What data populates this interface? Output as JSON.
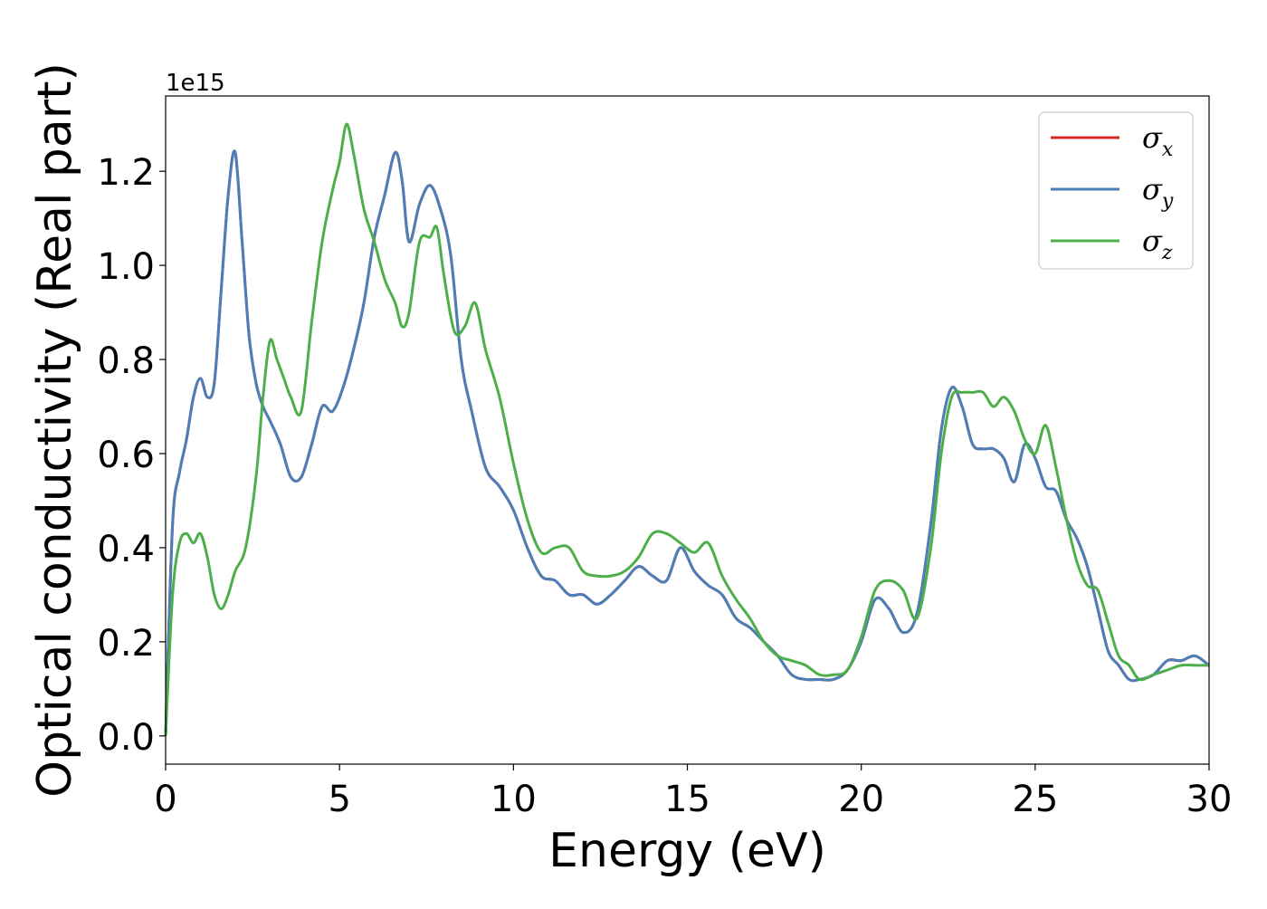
{
  "chart_data": {
    "type": "line",
    "xlabel": "Energy (eV)",
    "ylabel": "Optical conductivity (Real part)",
    "offset_text": "1e15",
    "xlim": [
      0,
      30
    ],
    "ylim": [
      -0.06,
      1.36
    ],
    "xticks": [
      0,
      5,
      10,
      15,
      20,
      25,
      30
    ],
    "xtick_labels": [
      "0",
      "5",
      "10",
      "15",
      "20",
      "25",
      "30"
    ],
    "yticks": [
      0.0,
      0.2,
      0.4,
      0.6,
      0.8,
      1.0,
      1.2
    ],
    "ytick_labels": [
      "0.0",
      "0.2",
      "0.4",
      "0.6",
      "0.8",
      "1.0",
      "1.2"
    ],
    "grid": false,
    "legend_position": "top-right",
    "series": [
      {
        "name": "σx",
        "symbol": "σ",
        "subscript": "x",
        "color": "#d62728",
        "x": [
          0,
          0.2,
          0.4,
          0.6,
          0.8,
          1.0,
          1.2,
          1.4,
          1.6,
          1.8,
          2.0,
          2.2,
          2.4,
          2.6,
          2.8,
          3.0,
          3.3,
          3.6,
          3.9,
          4.2,
          4.5,
          4.8,
          5.1,
          5.4,
          5.7,
          6.0,
          6.3,
          6.6,
          6.8,
          7.0,
          7.3,
          7.6,
          7.9,
          8.2,
          8.5,
          8.8,
          9.2,
          9.6,
          10.0,
          10.4,
          10.8,
          11.2,
          11.6,
          12.0,
          12.4,
          12.8,
          13.2,
          13.6,
          14.0,
          14.4,
          14.8,
          15.2,
          15.6,
          16.0,
          16.4,
          16.8,
          17.2,
          17.6,
          18.0,
          18.4,
          18.8,
          19.2,
          19.6,
          20.0,
          20.4,
          20.8,
          21.2,
          21.6,
          22.0,
          22.3,
          22.6,
          22.9,
          23.2,
          23.5,
          23.8,
          24.1,
          24.4,
          24.7,
          25.0,
          25.3,
          25.6,
          25.9,
          26.2,
          26.5,
          26.8,
          27.1,
          27.4,
          27.7,
          28.0,
          28.4,
          28.8,
          29.2,
          29.6,
          30.0
        ],
        "y": [
          0.0,
          0.45,
          0.56,
          0.63,
          0.72,
          0.76,
          0.72,
          0.75,
          0.95,
          1.15,
          1.24,
          1.05,
          0.85,
          0.75,
          0.7,
          0.67,
          0.62,
          0.55,
          0.55,
          0.62,
          0.7,
          0.69,
          0.74,
          0.82,
          0.92,
          1.06,
          1.15,
          1.24,
          1.18,
          1.05,
          1.13,
          1.17,
          1.12,
          1.02,
          0.8,
          0.69,
          0.57,
          0.53,
          0.48,
          0.4,
          0.34,
          0.33,
          0.3,
          0.3,
          0.28,
          0.3,
          0.33,
          0.36,
          0.34,
          0.33,
          0.4,
          0.35,
          0.32,
          0.3,
          0.25,
          0.23,
          0.2,
          0.17,
          0.13,
          0.12,
          0.12,
          0.12,
          0.14,
          0.2,
          0.29,
          0.27,
          0.22,
          0.26,
          0.45,
          0.65,
          0.74,
          0.7,
          0.62,
          0.61,
          0.61,
          0.59,
          0.54,
          0.62,
          0.59,
          0.53,
          0.52,
          0.46,
          0.42,
          0.36,
          0.27,
          0.18,
          0.15,
          0.12,
          0.12,
          0.13,
          0.16,
          0.16,
          0.17,
          0.15
        ]
      },
      {
        "name": "σy",
        "symbol": "σ",
        "subscript": "y",
        "color": "#4c7fb8",
        "x": [
          0,
          0.2,
          0.4,
          0.6,
          0.8,
          1.0,
          1.2,
          1.4,
          1.6,
          1.8,
          2.0,
          2.2,
          2.4,
          2.6,
          2.8,
          3.0,
          3.3,
          3.6,
          3.9,
          4.2,
          4.5,
          4.8,
          5.1,
          5.4,
          5.7,
          6.0,
          6.3,
          6.6,
          6.8,
          7.0,
          7.3,
          7.6,
          7.9,
          8.2,
          8.5,
          8.8,
          9.2,
          9.6,
          10.0,
          10.4,
          10.8,
          11.2,
          11.6,
          12.0,
          12.4,
          12.8,
          13.2,
          13.6,
          14.0,
          14.4,
          14.8,
          15.2,
          15.6,
          16.0,
          16.4,
          16.8,
          17.2,
          17.6,
          18.0,
          18.4,
          18.8,
          19.2,
          19.6,
          20.0,
          20.4,
          20.8,
          21.2,
          21.6,
          22.0,
          22.3,
          22.6,
          22.9,
          23.2,
          23.5,
          23.8,
          24.1,
          24.4,
          24.7,
          25.0,
          25.3,
          25.6,
          25.9,
          26.2,
          26.5,
          26.8,
          27.1,
          27.4,
          27.7,
          28.0,
          28.4,
          28.8,
          29.2,
          29.6,
          30.0
        ],
        "y": [
          0.0,
          0.45,
          0.56,
          0.63,
          0.72,
          0.76,
          0.72,
          0.75,
          0.95,
          1.15,
          1.24,
          1.05,
          0.85,
          0.75,
          0.7,
          0.67,
          0.62,
          0.55,
          0.55,
          0.62,
          0.7,
          0.69,
          0.74,
          0.82,
          0.92,
          1.06,
          1.15,
          1.24,
          1.18,
          1.05,
          1.13,
          1.17,
          1.12,
          1.02,
          0.8,
          0.69,
          0.57,
          0.53,
          0.48,
          0.4,
          0.34,
          0.33,
          0.3,
          0.3,
          0.28,
          0.3,
          0.33,
          0.36,
          0.34,
          0.33,
          0.4,
          0.35,
          0.32,
          0.3,
          0.25,
          0.23,
          0.2,
          0.17,
          0.13,
          0.12,
          0.12,
          0.12,
          0.14,
          0.2,
          0.29,
          0.27,
          0.22,
          0.26,
          0.45,
          0.65,
          0.74,
          0.7,
          0.62,
          0.61,
          0.61,
          0.59,
          0.54,
          0.62,
          0.59,
          0.53,
          0.52,
          0.46,
          0.42,
          0.36,
          0.27,
          0.18,
          0.15,
          0.12,
          0.12,
          0.13,
          0.16,
          0.16,
          0.17,
          0.15
        ]
      },
      {
        "name": "σz",
        "symbol": "σ",
        "subscript": "z",
        "color": "#4daf4a",
        "x": [
          0,
          0.2,
          0.4,
          0.6,
          0.8,
          1.0,
          1.2,
          1.4,
          1.6,
          1.8,
          2.0,
          2.3,
          2.6,
          2.8,
          3.0,
          3.2,
          3.4,
          3.6,
          3.9,
          4.2,
          4.5,
          4.8,
          5.0,
          5.2,
          5.4,
          5.7,
          6.0,
          6.3,
          6.6,
          6.8,
          7.0,
          7.3,
          7.6,
          7.8,
          8.0,
          8.3,
          8.6,
          8.9,
          9.2,
          9.6,
          10.0,
          10.4,
          10.8,
          11.2,
          11.6,
          12.0,
          12.4,
          12.8,
          13.2,
          13.6,
          14.0,
          14.4,
          14.8,
          15.2,
          15.6,
          16.0,
          16.4,
          16.8,
          17.2,
          17.6,
          18.0,
          18.4,
          18.8,
          19.2,
          19.6,
          20.0,
          20.4,
          20.8,
          21.2,
          21.6,
          22.0,
          22.3,
          22.6,
          22.9,
          23.2,
          23.5,
          23.8,
          24.1,
          24.4,
          24.7,
          25.0,
          25.3,
          25.6,
          25.9,
          26.2,
          26.5,
          26.8,
          27.1,
          27.4,
          27.7,
          28.0,
          28.4,
          28.8,
          29.2,
          29.6,
          30.0
        ],
        "y": [
          0.0,
          0.3,
          0.41,
          0.43,
          0.41,
          0.43,
          0.38,
          0.3,
          0.27,
          0.3,
          0.35,
          0.4,
          0.55,
          0.72,
          0.84,
          0.8,
          0.76,
          0.72,
          0.69,
          0.88,
          1.05,
          1.16,
          1.22,
          1.3,
          1.24,
          1.12,
          1.05,
          0.97,
          0.92,
          0.87,
          0.9,
          1.05,
          1.06,
          1.08,
          0.98,
          0.86,
          0.87,
          0.92,
          0.82,
          0.72,
          0.58,
          0.46,
          0.39,
          0.4,
          0.4,
          0.35,
          0.34,
          0.34,
          0.35,
          0.38,
          0.43,
          0.43,
          0.41,
          0.39,
          0.41,
          0.34,
          0.29,
          0.25,
          0.2,
          0.17,
          0.16,
          0.15,
          0.13,
          0.13,
          0.14,
          0.21,
          0.31,
          0.33,
          0.31,
          0.25,
          0.4,
          0.6,
          0.72,
          0.73,
          0.73,
          0.73,
          0.7,
          0.72,
          0.69,
          0.63,
          0.6,
          0.66,
          0.57,
          0.46,
          0.37,
          0.32,
          0.31,
          0.24,
          0.17,
          0.15,
          0.12,
          0.13,
          0.14,
          0.15,
          0.15,
          0.15
        ]
      }
    ]
  }
}
